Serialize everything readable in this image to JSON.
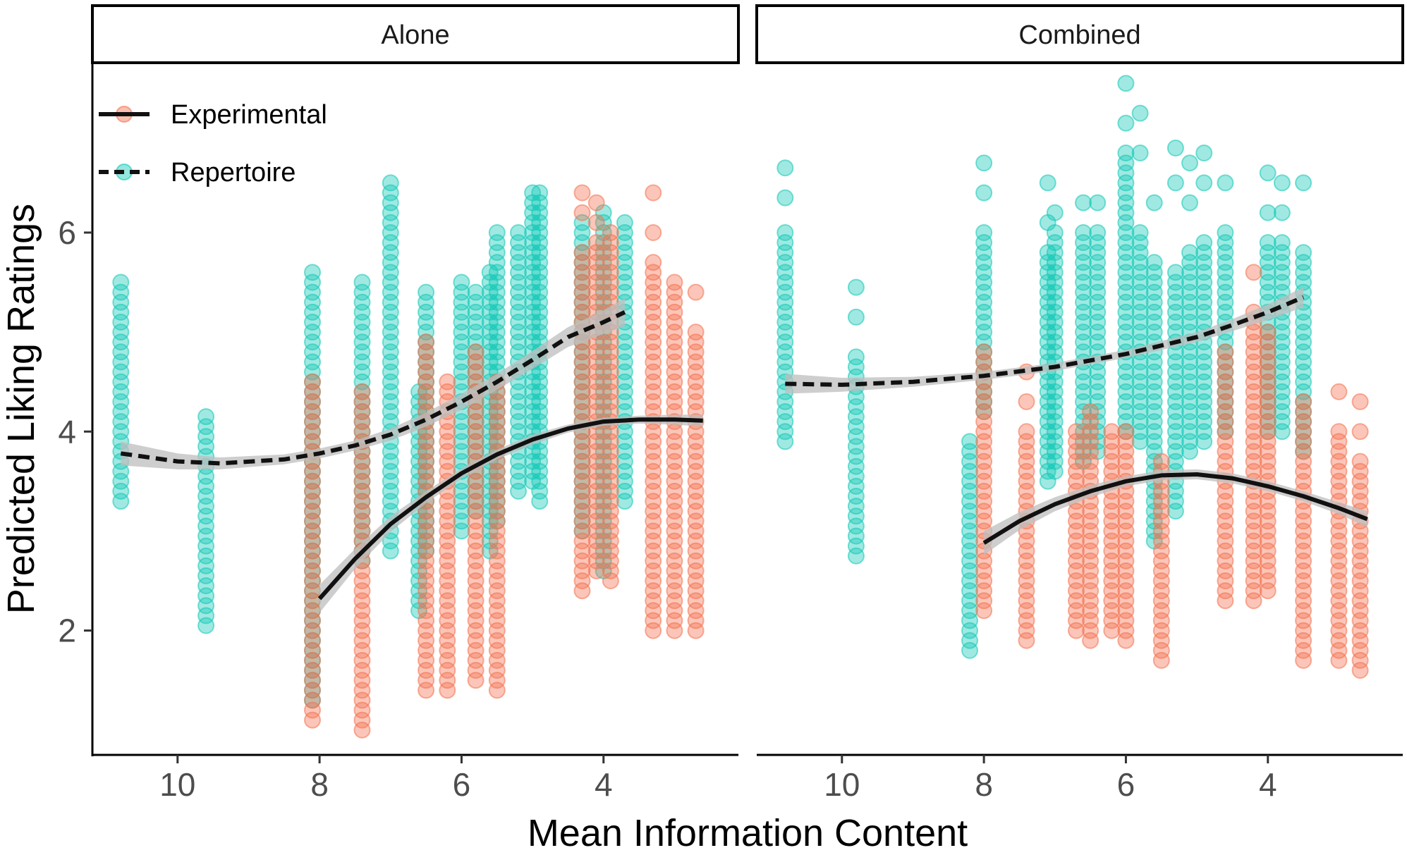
{
  "colors": {
    "experimental": "#f4714f",
    "repertoire": "#12c9b6",
    "line": "#111111",
    "ribbon": "#bdbdbd"
  },
  "chart_data": {
    "type": "scatter",
    "title": "",
    "xlabel": "Mean Information Content",
    "ylabel": "Predicted Liking Ratings",
    "xlim": [
      11.2,
      2.1
    ],
    "ylim": [
      0.75,
      7.7
    ],
    "x_reversed": true,
    "x_ticks": [
      10,
      8,
      6,
      4
    ],
    "x_tick_labels": [
      "10",
      "8",
      "6",
      "4"
    ],
    "y_ticks": [
      2,
      4,
      6
    ],
    "y_tick_labels": [
      "2",
      "4",
      "6"
    ],
    "legend": {
      "position": "top-left",
      "entries": [
        {
          "name": "Experimental",
          "color": "#f4714f",
          "linetype": "solid"
        },
        {
          "name": "Repertoire",
          "color": "#12c9b6",
          "linetype": "dashed"
        }
      ]
    },
    "panels": [
      {
        "name": "Alone",
        "series": [
          {
            "name": "Repertoire",
            "columns": [
              {
                "x": 10.8,
                "min": 3.3,
                "max": 5.5,
                "outliers": []
              },
              {
                "x": 9.6,
                "min": 2.05,
                "max": 4.2,
                "outliers": []
              },
              {
                "x": 8.1,
                "min": 1.3,
                "max": 5.6,
                "outliers": []
              },
              {
                "x": 7.4,
                "min": 2.7,
                "max": 5.5,
                "outliers": []
              },
              {
                "x": 7.0,
                "min": 2.8,
                "max": 6.55,
                "outliers": []
              },
              {
                "x": 6.6,
                "min": 2.2,
                "max": 4.4,
                "outliers": []
              },
              {
                "x": 6.5,
                "min": 2.8,
                "max": 5.4,
                "outliers": []
              },
              {
                "x": 6.0,
                "min": 3.0,
                "max": 5.5,
                "outliers": []
              },
              {
                "x": 5.8,
                "min": 3.2,
                "max": 5.4,
                "outliers": []
              },
              {
                "x": 5.6,
                "min": 2.8,
                "max": 5.6,
                "outliers": []
              },
              {
                "x": 5.5,
                "min": 3.1,
                "max": 6.05,
                "outliers": []
              },
              {
                "x": 5.2,
                "min": 3.4,
                "max": 6.0,
                "outliers": []
              },
              {
                "x": 5.0,
                "min": 3.5,
                "max": 6.4,
                "outliers": []
              },
              {
                "x": 4.9,
                "min": 3.3,
                "max": 6.4,
                "outliers": []
              },
              {
                "x": 4.3,
                "min": 3.0,
                "max": 6.1,
                "outliers": []
              },
              {
                "x": 4.0,
                "min": 2.6,
                "max": 6.2,
                "outliers": []
              },
              {
                "x": 3.7,
                "min": 3.3,
                "max": 6.1,
                "outliers": []
              }
            ]
          },
          {
            "name": "Experimental",
            "columns": [
              {
                "x": 8.1,
                "min": 1.1,
                "max": 4.5,
                "outliers": []
              },
              {
                "x": 7.4,
                "min": 1.0,
                "max": 4.4,
                "outliers": []
              },
              {
                "x": 6.5,
                "min": 1.4,
                "max": 4.9,
                "outliers": []
              },
              {
                "x": 6.2,
                "min": 1.4,
                "max": 4.5,
                "outliers": []
              },
              {
                "x": 5.8,
                "min": 1.5,
                "max": 4.8,
                "outliers": []
              },
              {
                "x": 5.5,
                "min": 1.4,
                "max": 4.5,
                "outliers": []
              },
              {
                "x": 4.3,
                "min": 2.4,
                "max": 5.8,
                "outliers": [
                  6.4,
                  6.2
                ]
              },
              {
                "x": 4.1,
                "min": 2.6,
                "max": 5.9,
                "outliers": [
                  6.3,
                  6.1
                ]
              },
              {
                "x": 3.9,
                "min": 2.5,
                "max": 6.0,
                "outliers": []
              },
              {
                "x": 3.3,
                "min": 2.0,
                "max": 5.7,
                "outliers": [
                  6.4,
                  6.0
                ]
              },
              {
                "x": 3.0,
                "min": 2.0,
                "max": 5.5,
                "outliers": []
              },
              {
                "x": 2.7,
                "min": 2.0,
                "max": 5.0,
                "outliers": [
                  5.4
                ]
              }
            ]
          }
        ],
        "fits": [
          {
            "name": "Repertoire",
            "linetype": "dashed",
            "x": [
              10.8,
              10.0,
              9.4,
              8.5,
              8.0,
              7.5,
              7.0,
              6.5,
              6.0,
              5.5,
              5.0,
              4.5,
              4.0,
              3.7
            ],
            "y": [
              3.78,
              3.7,
              3.68,
              3.72,
              3.78,
              3.86,
              3.97,
              4.12,
              4.3,
              4.5,
              4.72,
              4.95,
              5.1,
              5.2
            ],
            "se": [
              0.12,
              0.08,
              0.06,
              0.05,
              0.05,
              0.05,
              0.06,
              0.07,
              0.08,
              0.08,
              0.09,
              0.1,
              0.12,
              0.14
            ]
          },
          {
            "name": "Experimental",
            "linetype": "solid",
            "x": [
              8.0,
              7.5,
              7.0,
              6.5,
              6.0,
              5.5,
              5.0,
              4.5,
              4.0,
              3.5,
              3.0,
              2.6
            ],
            "y": [
              2.32,
              2.72,
              3.07,
              3.34,
              3.58,
              3.77,
              3.92,
              4.03,
              4.1,
              4.12,
              4.12,
              4.11
            ],
            "se": [
              0.14,
              0.1,
              0.08,
              0.06,
              0.05,
              0.05,
              0.05,
              0.04,
              0.04,
              0.04,
              0.05,
              0.06
            ]
          }
        ]
      },
      {
        "name": "Combined",
        "series": [
          {
            "name": "Repertoire",
            "columns": [
              {
                "x": 10.8,
                "min": 3.9,
                "max": 6.0,
                "outliers": [
                  6.35,
                  6.65
                ]
              },
              {
                "x": 9.8,
                "min": 2.75,
                "max": 4.8,
                "outliers": [
                  5.15,
                  5.45
                ]
              },
              {
                "x": 8.2,
                "min": 1.8,
                "max": 3.9,
                "outliers": []
              },
              {
                "x": 8.0,
                "min": 4.2,
                "max": 6.0,
                "outliers": [
                  6.4,
                  6.7
                ]
              },
              {
                "x": 7.1,
                "min": 3.5,
                "max": 5.8,
                "outliers": [
                  6.1,
                  6.5
                ]
              },
              {
                "x": 7.0,
                "min": 3.6,
                "max": 6.0,
                "outliers": [
                  6.2
                ]
              },
              {
                "x": 6.6,
                "min": 3.7,
                "max": 5.9,
                "outliers": [
                  6.0,
                  6.3
                ]
              },
              {
                "x": 6.4,
                "min": 3.8,
                "max": 6.0,
                "outliers": [
                  6.3
                ]
              },
              {
                "x": 6.0,
                "min": 4.0,
                "max": 6.85,
                "outliers": [
                  7.1,
                  7.5
                ]
              },
              {
                "x": 5.8,
                "min": 3.9,
                "max": 6.0,
                "outliers": [
                  6.8,
                  7.2
                ]
              },
              {
                "x": 5.6,
                "min": 2.9,
                "max": 5.7,
                "outliers": [
                  6.3
                ]
              },
              {
                "x": 5.3,
                "min": 3.2,
                "max": 5.6,
                "outliers": [
                  6.5,
                  6.85
                ]
              },
              {
                "x": 5.1,
                "min": 3.8,
                "max": 5.8,
                "outliers": [
                  6.3,
                  6.7
                ]
              },
              {
                "x": 4.9,
                "min": 3.9,
                "max": 5.9,
                "outliers": [
                  6.5,
                  6.8
                ]
              },
              {
                "x": 4.6,
                "min": 4.0,
                "max": 6.0,
                "outliers": [
                  6.5
                ]
              },
              {
                "x": 4.0,
                "min": 4.0,
                "max": 5.9,
                "outliers": [
                  6.2,
                  6.6
                ]
              },
              {
                "x": 3.8,
                "min": 4.0,
                "max": 5.9,
                "outliers": [
                  6.2,
                  6.5
                ]
              },
              {
                "x": 3.5,
                "min": 3.8,
                "max": 5.8,
                "outliers": [
                  6.5
                ]
              }
            ]
          },
          {
            "name": "Experimental",
            "columns": [
              {
                "x": 8.0,
                "min": 2.2,
                "max": 4.8,
                "outliers": []
              },
              {
                "x": 7.4,
                "min": 1.9,
                "max": 4.0,
                "outliers": [
                  4.3,
                  4.6
                ]
              },
              {
                "x": 6.7,
                "min": 2.0,
                "max": 4.0,
                "outliers": []
              },
              {
                "x": 6.5,
                "min": 1.9,
                "max": 4.2,
                "outliers": []
              },
              {
                "x": 6.2,
                "min": 2.0,
                "max": 4.0,
                "outliers": []
              },
              {
                "x": 6.0,
                "min": 1.9,
                "max": 4.0,
                "outliers": []
              },
              {
                "x": 5.5,
                "min": 1.7,
                "max": 3.7,
                "outliers": []
              },
              {
                "x": 4.6,
                "min": 2.3,
                "max": 4.8,
                "outliers": []
              },
              {
                "x": 4.2,
                "min": 2.3,
                "max": 5.2,
                "outliers": [
                  5.6
                ]
              },
              {
                "x": 4.0,
                "min": 2.4,
                "max": 5.0,
                "outliers": []
              },
              {
                "x": 3.5,
                "min": 1.7,
                "max": 4.3,
                "outliers": []
              },
              {
                "x": 3.0,
                "min": 1.7,
                "max": 4.0,
                "outliers": [
                  4.4
                ]
              },
              {
                "x": 2.7,
                "min": 1.6,
                "max": 3.7,
                "outliers": [
                  4.0,
                  4.3
                ]
              }
            ]
          }
        ],
        "fits": [
          {
            "name": "Repertoire",
            "linetype": "dashed",
            "x": [
              10.8,
              10.0,
              9.0,
              8.0,
              7.0,
              6.0,
              5.0,
              4.5,
              4.0,
              3.5
            ],
            "y": [
              4.48,
              4.47,
              4.5,
              4.56,
              4.65,
              4.78,
              4.95,
              5.07,
              5.2,
              5.35
            ],
            "se": [
              0.1,
              0.07,
              0.05,
              0.04,
              0.04,
              0.04,
              0.05,
              0.06,
              0.08,
              0.1
            ]
          },
          {
            "name": "Experimental",
            "linetype": "solid",
            "x": [
              8.0,
              7.5,
              7.0,
              6.5,
              6.0,
              5.5,
              5.0,
              4.5,
              4.0,
              3.5,
              3.0,
              2.6
            ],
            "y": [
              2.88,
              3.1,
              3.27,
              3.4,
              3.5,
              3.56,
              3.57,
              3.53,
              3.45,
              3.35,
              3.23,
              3.12
            ],
            "se": [
              0.12,
              0.09,
              0.07,
              0.06,
              0.05,
              0.05,
              0.05,
              0.05,
              0.05,
              0.05,
              0.06,
              0.08
            ]
          }
        ]
      }
    ]
  }
}
